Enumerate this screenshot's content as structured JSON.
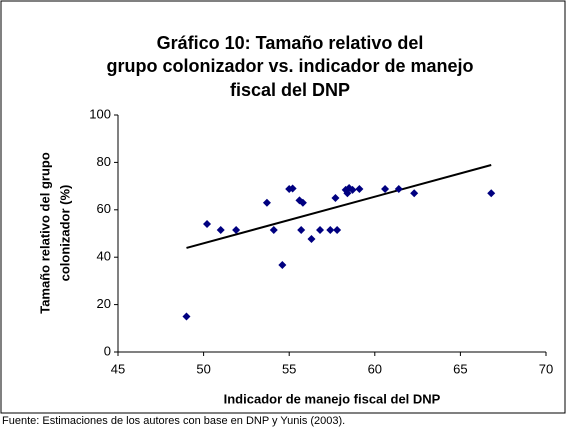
{
  "chart_data": {
    "type": "scatter",
    "title": [
      "Gráfico 10: Tamaño relativo del",
      "grupo colonizador vs. indicador de manejo",
      "fiscal del DNP"
    ],
    "x_label": "Indicador de manejo fiscal del DNP",
    "y_label": [
      "Tamaño relativo del grupo",
      "colonizador (%)"
    ],
    "source": "Fuente: Estimaciones de los autores con base en DNP y Yunis (2003).",
    "color": "#000080",
    "x": [
      49.0,
      50.2,
      51.0,
      51.9,
      53.7,
      54.1,
      54.6,
      55.0,
      55.2,
      55.6,
      55.8,
      55.7,
      56.3,
      56.8,
      57.4,
      57.8,
      57.7,
      58.3,
      58.5,
      58.4,
      58.7,
      59.1,
      60.6,
      61.4,
      62.3,
      66.8
    ],
    "values": [
      15,
      54,
      51.5,
      51.5,
      63,
      51.5,
      36.7,
      68.8,
      69,
      64,
      63,
      51.5,
      47.7,
      51.5,
      51.5,
      51.5,
      65,
      68.4,
      69.2,
      67,
      68.4,
      68.8,
      68.8,
      68.8,
      67,
      67
    ],
    "trendline": {
      "x": [
        49.0,
        66.8
      ],
      "values": [
        43.9,
        78.9
      ],
      "color": "#000000"
    },
    "xlim": [
      45,
      70
    ],
    "xticks": [
      45,
      50,
      55,
      60,
      65,
      70
    ],
    "ylim": [
      0,
      100
    ],
    "yticks": [
      0,
      20,
      40,
      60,
      80,
      100
    ]
  }
}
